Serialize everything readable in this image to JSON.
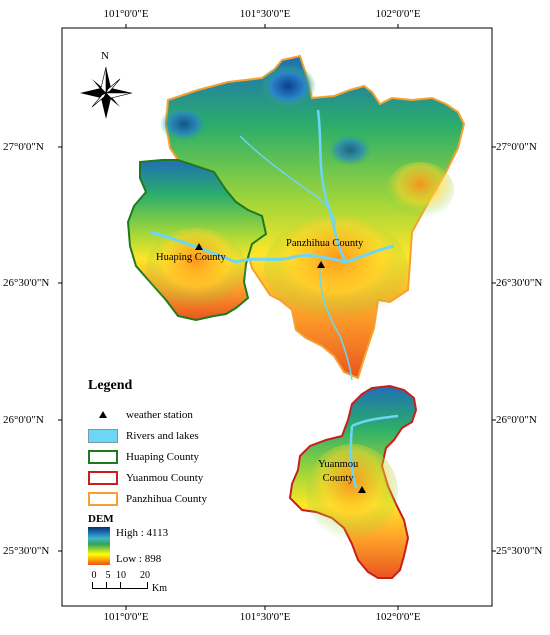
{
  "top_ticks": [
    "101°0'0\"E",
    "101°30'0\"E",
    "102°0'0\"E"
  ],
  "bottom_ticks": [
    "101°0'0\"E",
    "101°30'0\"E",
    "102°0'0\"E"
  ],
  "left_ticks": [
    "27°0'0\"N",
    "26°30'0\"N",
    "26°0'0\"N",
    "25°30'0\"N"
  ],
  "right_ticks": [
    "27°0'0\"N",
    "26°30'0\"N",
    "26°0'0\"N",
    "25°30'0\"N"
  ],
  "north_arrow": {
    "label": "N",
    "icon": "compass-star-icon"
  },
  "places": {
    "huaping": "Huaping County",
    "panzhihua": "Panzhihua County",
    "yuanmou": "Yuanmou\nCounty"
  },
  "legend": {
    "title": "Legend",
    "items": [
      {
        "label": "weather station",
        "icon": "triangle-icon"
      },
      {
        "label": "Rivers and lakes",
        "color": "#6ed6f5"
      },
      {
        "label": "Huaping County",
        "color": "#1f7a1f"
      },
      {
        "label": "Yuanmou County",
        "color": "#c81e1e"
      },
      {
        "label": "Panzhihua County",
        "color": "#f5a030"
      }
    ],
    "dem_title": "DEM",
    "dem_high": "High : 4113",
    "dem_low": "Low : 898"
  },
  "scale_bar": {
    "ticks": [
      "0",
      "5",
      "10",
      "20"
    ],
    "unit": "Km"
  }
}
